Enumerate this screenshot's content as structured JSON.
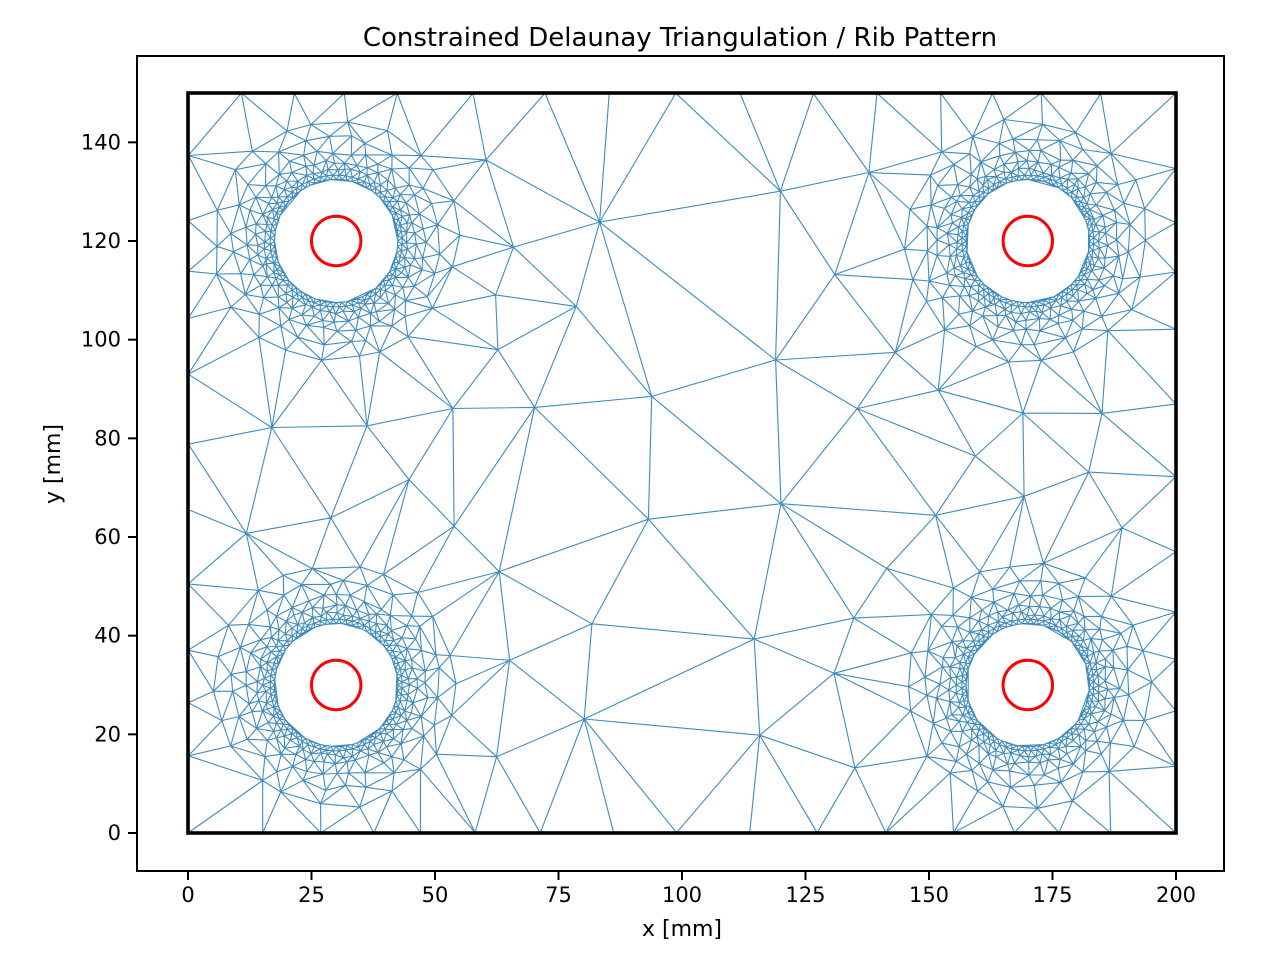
{
  "figure": {
    "background": "#ffffff"
  },
  "chart_data": {
    "type": "mesh-triangulation",
    "title": "Constrained Delaunay Triangulation / Rib Pattern",
    "xlabel": "x [mm]",
    "ylabel": "y [mm]",
    "xticks": [
      0,
      25,
      50,
      75,
      100,
      125,
      150,
      175,
      200
    ],
    "yticks": [
      0,
      20,
      40,
      60,
      80,
      100,
      120,
      140
    ],
    "xlim": [
      -10,
      210
    ],
    "ylim": [
      -7.5,
      157.5
    ],
    "grid": false,
    "legend": false,
    "domain": {
      "x": [
        0,
        200
      ],
      "y": [
        0,
        150
      ]
    },
    "holes": {
      "centers": [
        [
          30,
          120
        ],
        [
          170,
          120
        ],
        [
          30,
          30
        ],
        [
          170,
          30
        ]
      ],
      "inner_mesh_radius": 12.5,
      "refinement_rings": [
        [
          12.5,
          72
        ],
        [
          13.35,
          64
        ],
        [
          14.5,
          56
        ],
        [
          16.1,
          46
        ],
        [
          18.2,
          36
        ],
        [
          21.0,
          28
        ],
        [
          24.5,
          22
        ]
      ]
    },
    "red_circles": {
      "radius": 5,
      "color": "#ff0000",
      "stroke_width": 3
    },
    "mesh": {
      "color": "#1f77b4",
      "stroke_width": 1.1,
      "opacity": 0.85,
      "seed": 7,
      "size_min": 1.4,
      "size_max": 30,
      "size_growth": 0.55,
      "boundary_size_max": 14
    },
    "boundary": {
      "color": "#000000",
      "stroke_width": 3.6
    }
  }
}
